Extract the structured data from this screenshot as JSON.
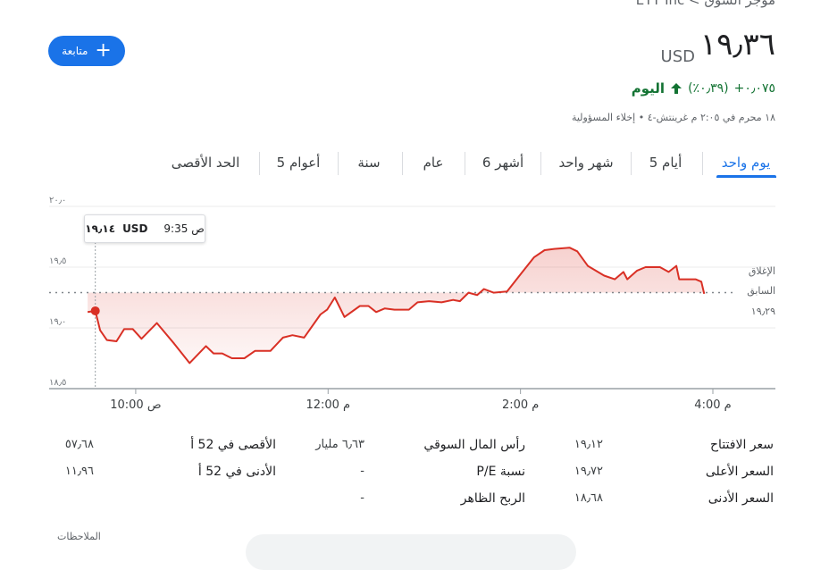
{
  "header": {
    "breadcrumb": "موجز السوق > ETT Inc",
    "follow": "متابعة",
    "price": "١٩٫٣٦",
    "currency": "USD",
    "change": "+٠٫٠٧٥",
    "change_percent": "(٠٫٣٩٪)",
    "period": "اليوم",
    "timestamp": "١٨ محرم في ٢:٠٥ م غرينتش-٤ • إخلاء المسؤولية"
  },
  "tabs": [
    "يوم واحد",
    "5 أيام",
    "شهر واحد",
    "6 أشهر",
    "عام",
    "سنة",
    "5 أعوام",
    "الحد الأقصى"
  ],
  "chart_data": {
    "type": "line",
    "color": "#d93025",
    "x": [
      9.5,
      9.58,
      9.63,
      9.7,
      9.8,
      9.88,
      9.97,
      10.06,
      10.22,
      10.4,
      10.56,
      10.73,
      10.81,
      10.9,
      11.0,
      11.13,
      11.24,
      11.4,
      11.53,
      11.63,
      11.75,
      11.92,
      11.99,
      12.07,
      12.17,
      12.33,
      12.42,
      12.5,
      12.59,
      12.69,
      12.84,
      12.93,
      13.05,
      13.18,
      13.3,
      13.37,
      13.46,
      13.55,
      13.62,
      13.72,
      13.86,
      14.01,
      14.14,
      14.25,
      14.35,
      14.51,
      14.59,
      14.7,
      14.87,
      14.98,
      15.07,
      15.11,
      15.21,
      15.3,
      15.45,
      15.54,
      15.62,
      15.65,
      15.82,
      15.88,
      15.91
    ],
    "values": [
      19.13,
      19.14,
      18.98,
      18.9,
      18.89,
      18.99,
      18.99,
      18.91,
      19.04,
      18.87,
      18.71,
      18.85,
      18.79,
      18.79,
      18.75,
      18.75,
      18.81,
      18.81,
      18.92,
      18.94,
      18.92,
      19.11,
      19.15,
      19.25,
      19.09,
      19.18,
      19.18,
      19.13,
      19.16,
      19.15,
      19.15,
      19.21,
      19.22,
      19.21,
      19.23,
      19.22,
      19.29,
      19.27,
      19.32,
      19.29,
      19.3,
      19.45,
      19.58,
      19.64,
      19.65,
      19.66,
      19.63,
      19.51,
      19.43,
      19.4,
      19.46,
      19.4,
      19.47,
      19.5,
      19.5,
      19.46,
      19.51,
      19.4,
      19.4,
      19.38,
      19.28
    ],
    "xlim": [
      9.1,
      16.65
    ],
    "ylim": [
      18.5,
      20.0
    ],
    "xticks": [
      {
        "value": 10,
        "label": "10:00 ص"
      },
      {
        "value": 12,
        "label": "12:00 م"
      },
      {
        "value": 14,
        "label": "2:00 م"
      },
      {
        "value": 16,
        "label": "4:00 م"
      }
    ],
    "yticks": [
      {
        "value": 18.5,
        "label": "١٨٫٥"
      },
      {
        "value": 19.0,
        "label": "١٩٫٠"
      },
      {
        "value": 19.5,
        "label": "١٩٫٥"
      },
      {
        "value": 20.0,
        "label": "٢٠٫٠"
      }
    ],
    "grid": true,
    "previous_close": {
      "value": 19.29,
      "value_label": "١٩٫٢٩",
      "label": [
        "الإغلاق",
        "السابق"
      ]
    },
    "tooltip": {
      "time": "9:35 ص",
      "value": "١٩٫١٤",
      "currency": "USD"
    }
  },
  "stats": {
    "rows": [
      [
        "سعر الافتتاح",
        "١٩٫١٢",
        "رأس المال السوقي",
        "٦٫٦٣ مليار",
        "الأقصى في 52 أ",
        "٥٧٫٦٨"
      ],
      [
        "السعر الأعلى",
        "١٩٫٧٢",
        "نسبة P/E",
        "-",
        "الأدنى في 52 أ",
        "١١٫٩٦"
      ],
      [
        "السعر الأدنى",
        "١٨٫٦٨",
        "الربح الظاهر",
        "-"
      ]
    ]
  },
  "notes": "الملاحظات"
}
